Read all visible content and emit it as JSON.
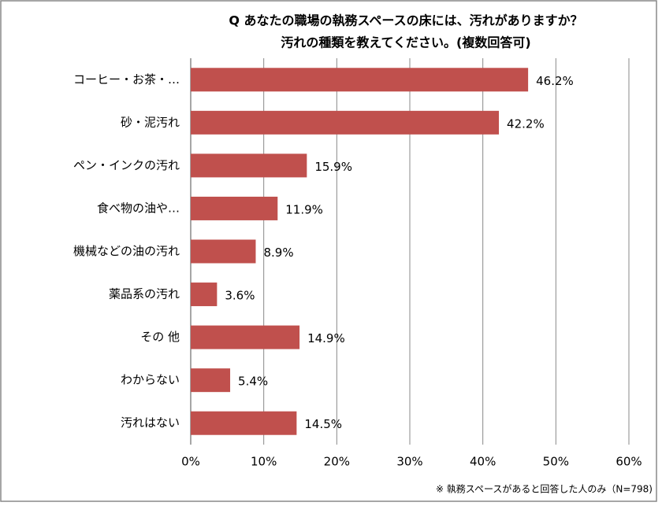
{
  "chart_data": {
    "type": "hbar",
    "title": [
      "Q  あなたの職場の執務スペースの床には、汚れがありますか？",
      "汚れの種類を教えてください。(複数回答可)"
    ],
    "categories": [
      "コーヒー・お茶・…",
      "砂・泥汚れ",
      "ペン・インクの汚れ",
      "食べ物の油や…",
      "機械などの油の汚れ",
      "薬品系の汚れ",
      "その 他",
      "わからない",
      "汚れはない"
    ],
    "values": [
      46.2,
      42.2,
      15.9,
      11.9,
      8.9,
      3.6,
      14.9,
      5.4,
      14.5
    ],
    "value_labels": [
      "46.2%",
      "42.2%",
      "15.9%",
      "11.9%",
      "8.9%",
      "3.6%",
      "14.9%",
      "5.4%",
      "14.5%"
    ],
    "color": "#c0504d",
    "xlim": [
      0,
      60
    ],
    "xticks": [
      {
        "value": 0,
        "label": "0%"
      },
      {
        "value": 10,
        "label": "10%"
      },
      {
        "value": 20,
        "label": "20%"
      },
      {
        "value": 30,
        "label": "30%"
      },
      {
        "value": 40,
        "label": "40%"
      },
      {
        "value": 50,
        "label": "50%"
      },
      {
        "value": 60,
        "label": "60%"
      }
    ],
    "grid": true,
    "note": "※ 執務スペースがあると回答した人のみ（N=798)"
  }
}
